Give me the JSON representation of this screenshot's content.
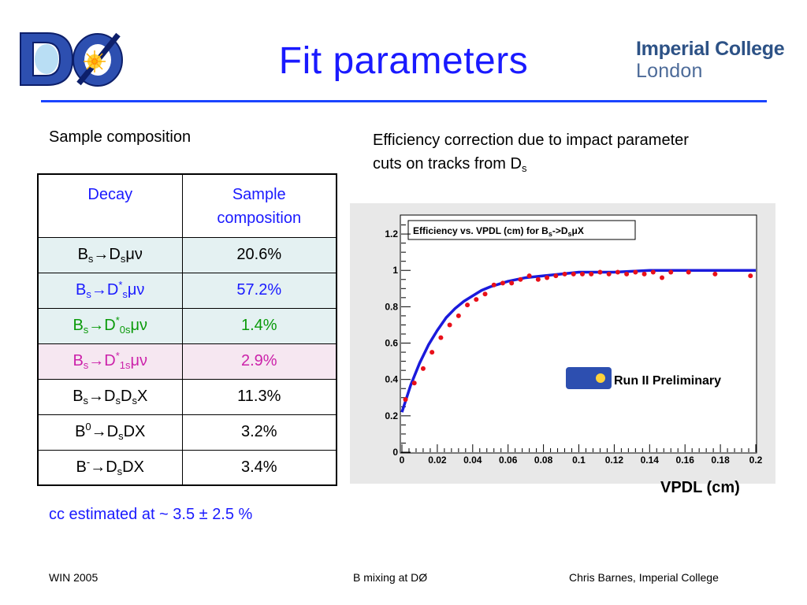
{
  "slide": {
    "title": "Fit parameters",
    "logo_text": "DØ",
    "institution_line1": "Imperial College",
    "institution_line2": "London",
    "accent_color": "#1a44ff"
  },
  "left": {
    "heading": "Sample composition",
    "table": {
      "col1_header": "Decay",
      "col2_header_line1": "Sample",
      "col2_header_line2": "composition",
      "rows": [
        {
          "arrow": "→",
          "main": "B",
          "sub1": "s",
          "part2": "D",
          "sub2": "s",
          "tail": "μν",
          "value": "20.6%"
        },
        {
          "arrow": "→",
          "main": "B",
          "sub1": "s",
          "part2": "D",
          "sup2": "*",
          "sub2": "s",
          "tail": "μν",
          "value": "57.2%"
        },
        {
          "arrow": "→",
          "main": "B",
          "sub1": "s",
          "part2": "D",
          "sup2": "*",
          "sub2": "0s",
          "tail": "μν",
          "value": "1.4%"
        },
        {
          "arrow": "→",
          "main": "B",
          "sub1": "s",
          "part2": "D",
          "sup2": "*",
          "sub2": "1s",
          "tail": "μν",
          "value": "2.9%"
        },
        {
          "arrow": "→",
          "main": "B",
          "sub1": "s",
          "part2": "D",
          "sub2": "s",
          "part3": "D",
          "sub3": "s",
          "tail": "X",
          "value": "11.3%"
        },
        {
          "arrow": "→",
          "main": "B",
          "sup1": "0",
          "part2": "D",
          "sub2": "s",
          "tail": "DX",
          "value": "3.2%"
        },
        {
          "arrow": "→",
          "main": "B",
          "sup1": "-",
          "part2": "D",
          "sub2": "s",
          "tail": "DX",
          "value": "3.4%"
        }
      ]
    },
    "note": "cc estimated at ~ 3.5 ± 2.5 %"
  },
  "right": {
    "heading_line1": "Efficiency correction due to impact parameter",
    "heading_line2": "cuts on tracks from D",
    "heading_sub": "s",
    "preliminary_label": "Run II Preliminary"
  },
  "chart_data": {
    "type": "scatter",
    "title": "Efficiency vs. VPDL (cm) for Bs->DsμX",
    "title_parts": {
      "a": "Efficiency vs. VPDL (cm) for B",
      "b": "s",
      "c": "->D",
      "d": "s",
      "e": "μX"
    },
    "xlabel": "VPDL (cm)",
    "ylabel": "",
    "xlim": [
      0,
      0.2
    ],
    "ylim": [
      0,
      1.3
    ],
    "x_ticks": [
      "0",
      "0.02",
      "0.04",
      "0.06",
      "0.08",
      "0.1",
      "0.12",
      "0.14",
      "0.16",
      "0.18",
      "0.2"
    ],
    "y_ticks": [
      "0",
      "0.2",
      "0.4",
      "0.6",
      "0.8",
      "1",
      "1.2"
    ],
    "grid": false,
    "series": [
      {
        "kind": "points",
        "color": "#e8101a",
        "x": [
          0.002,
          0.007,
          0.012,
          0.017,
          0.022,
          0.027,
          0.032,
          0.037,
          0.042,
          0.047,
          0.052,
          0.057,
          0.062,
          0.067,
          0.072,
          0.077,
          0.082,
          0.087,
          0.092,
          0.097,
          0.102,
          0.107,
          0.112,
          0.117,
          0.122,
          0.127,
          0.132,
          0.137,
          0.142,
          0.147,
          0.152,
          0.162,
          0.177,
          0.197
        ],
        "y": [
          0.29,
          0.38,
          0.46,
          0.55,
          0.63,
          0.7,
          0.75,
          0.81,
          0.84,
          0.87,
          0.92,
          0.93,
          0.93,
          0.95,
          0.97,
          0.95,
          0.96,
          0.97,
          0.98,
          0.98,
          0.98,
          0.98,
          0.99,
          0.98,
          0.99,
          0.98,
          0.99,
          0.98,
          0.99,
          0.96,
          0.99,
          0.99,
          0.98,
          0.97
        ]
      },
      {
        "kind": "fit",
        "color": "#1a1adc",
        "x": [
          0,
          0.005,
          0.01,
          0.015,
          0.02,
          0.025,
          0.03,
          0.035,
          0.04,
          0.045,
          0.05,
          0.06,
          0.07,
          0.08,
          0.09,
          0.1,
          0.12,
          0.14,
          0.16,
          0.18,
          0.2
        ],
        "y": [
          0.22,
          0.37,
          0.49,
          0.59,
          0.67,
          0.74,
          0.79,
          0.83,
          0.86,
          0.89,
          0.91,
          0.94,
          0.96,
          0.97,
          0.98,
          0.99,
          0.99,
          1.0,
          1.0,
          1.0,
          1.0
        ]
      }
    ]
  },
  "footer": {
    "left": "WIN 2005",
    "middle": "B mixing at DØ",
    "right": "Chris Barnes, Imperial College"
  }
}
